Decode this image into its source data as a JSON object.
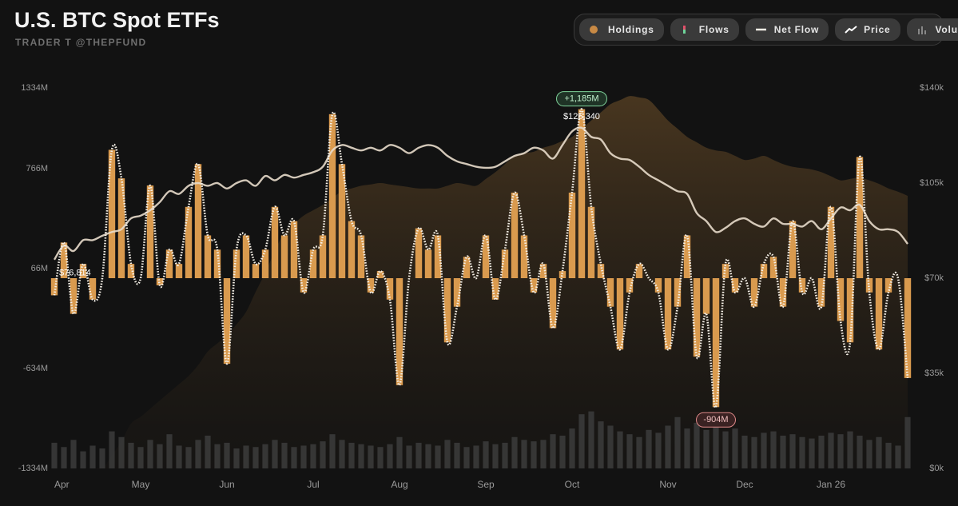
{
  "chart_data": {
    "type": "combo",
    "title": "U.S. BTC Spot ETFs",
    "subtitle": "TRADER T @THEPFUND",
    "categories": [
      "Apr",
      null,
      null,
      null,
      null,
      null,
      null,
      null,
      null,
      "May",
      null,
      null,
      null,
      null,
      null,
      null,
      null,
      null,
      "Jun",
      null,
      null,
      null,
      null,
      null,
      null,
      null,
      null,
      "Jul",
      null,
      null,
      null,
      null,
      null,
      null,
      null,
      null,
      "Aug",
      null,
      null,
      null,
      null,
      null,
      null,
      null,
      null,
      "Sep",
      null,
      null,
      null,
      null,
      null,
      null,
      null,
      null,
      "Oct",
      null,
      null,
      null,
      null,
      null,
      null,
      null,
      null,
      null,
      "Nov",
      null,
      null,
      null,
      null,
      null,
      null,
      null,
      "Dec",
      null,
      null,
      null,
      null,
      null,
      null,
      null,
      null,
      "Jan 26",
      null,
      null,
      null,
      null,
      null,
      null,
      null,
      null
    ],
    "ylim": [
      -1334,
      1334
    ],
    "yticks": [
      {
        "value": 1334,
        "label": "1334M"
      },
      {
        "value": 766,
        "label": "766M"
      },
      {
        "value": 66,
        "label": "66M"
      },
      {
        "value": -634,
        "label": "-634M"
      },
      {
        "value": -1334,
        "label": "-1334M"
      }
    ],
    "y2lim": [
      0,
      140000
    ],
    "y2ticks": [
      {
        "value": 140000,
        "label": "$140k"
      },
      {
        "value": 105000,
        "label": "$105k"
      },
      {
        "value": 70000,
        "label": "$70k"
      },
      {
        "value": 35000,
        "label": "$35k"
      },
      {
        "value": 0,
        "label": "$0k"
      }
    ],
    "grid": false,
    "series": [
      {
        "name": "Holdings",
        "type": "area",
        "axis": "y2",
        "color": "#c98a45",
        "values": [
          0,
          0,
          0,
          0,
          0,
          0,
          4700,
          10000,
          16500,
          19000,
          22000,
          25000,
          28000,
          31000,
          34000,
          38000,
          43000,
          46000,
          49000,
          53000,
          57600,
          65000,
          72000,
          80000,
          87000,
          90000,
          93000,
          95000,
          97000,
          99500,
          102000,
          103000,
          104000,
          104500,
          105000,
          104500,
          104000,
          103500,
          103000,
          103000,
          103000,
          104000,
          105000,
          104500,
          104000,
          106500,
          109000,
          112000,
          115000,
          116000,
          116500,
          118000,
          119000,
          120500,
          122000,
          125000,
          128000,
          131000,
          134000,
          135500,
          137000,
          136500,
          135600,
          132000,
          128000,
          125000,
          122000,
          120000,
          118000,
          117000,
          116500,
          115000,
          113500,
          114000,
          115000,
          113500,
          112000,
          111000,
          110500,
          110000,
          109000,
          107500,
          106000,
          106500,
          107000,
          106000,
          104700,
          103000,
          101800,
          100300
        ]
      },
      {
        "name": "Flows",
        "type": "bar",
        "color": "#d99a4e",
        "values": [
          -120,
          250,
          -250,
          100,
          -150,
          0,
          900,
          700,
          100,
          0,
          650,
          -50,
          200,
          100,
          500,
          800,
          300,
          200,
          -600,
          200,
          300,
          100,
          200,
          500,
          300,
          400,
          -100,
          200,
          300,
          1150,
          800,
          400,
          300,
          -100,
          50,
          -150,
          -750,
          0,
          350,
          200,
          300,
          -450,
          -200,
          150,
          0,
          300,
          -150,
          200,
          600,
          300,
          -100,
          100,
          -350,
          50,
          600,
          1185,
          500,
          100,
          -200,
          -500,
          -100,
          100,
          0,
          -100,
          -500,
          -200,
          300,
          -550,
          -250,
          -904,
          100,
          -100,
          0,
          -200,
          100,
          150,
          -200,
          400,
          -100,
          0,
          -200,
          500,
          -300,
          -450,
          850,
          -100,
          -500,
          -100,
          0,
          -700
        ],
        "value_labels": [
          null,
          null,
          null,
          null,
          null,
          null,
          null,
          null,
          null,
          null,
          null,
          null,
          null,
          null,
          null,
          null,
          null,
          null,
          null,
          null,
          null,
          null,
          null,
          null,
          null,
          null,
          null,
          null,
          null,
          null,
          null,
          null,
          null,
          null,
          null,
          null,
          null,
          null,
          null,
          null,
          null,
          null,
          null,
          null,
          null,
          null,
          null,
          null,
          null,
          null,
          null,
          null,
          null,
          null,
          null,
          "+1,185M",
          null,
          null,
          null,
          null,
          null,
          null,
          null,
          null,
          null,
          null,
          null,
          null,
          null,
          "-904M",
          null,
          null,
          null,
          null,
          null,
          null,
          null,
          null,
          null,
          null,
          null,
          null,
          null,
          null,
          null,
          null,
          null,
          null,
          null,
          null
        ]
      },
      {
        "name": "Net Flow",
        "type": "smooth",
        "color": "#f4efe6",
        "values": [
          -120,
          250,
          -250,
          100,
          -150,
          0,
          900,
          700,
          100,
          0,
          650,
          -50,
          200,
          100,
          500,
          800,
          300,
          200,
          -600,
          200,
          300,
          100,
          200,
          500,
          300,
          400,
          -100,
          200,
          300,
          1150,
          800,
          400,
          300,
          -100,
          50,
          -150,
          -750,
          0,
          350,
          200,
          300,
          -450,
          -200,
          150,
          0,
          300,
          -150,
          200,
          600,
          300,
          -100,
          100,
          -350,
          50,
          600,
          1185,
          500,
          100,
          -200,
          -500,
          -100,
          100,
          0,
          -100,
          -500,
          -200,
          300,
          -550,
          -250,
          -904,
          100,
          -100,
          0,
          -200,
          100,
          150,
          -200,
          400,
          -100,
          0,
          -200,
          500,
          -300,
          -450,
          850,
          -100,
          -500,
          -100,
          0,
          -700
        ]
      },
      {
        "name": "Price",
        "type": "line",
        "axis": "y2",
        "color": "#e8dccb",
        "values": [
          76814,
          82000,
          80000,
          84000,
          84000,
          85600,
          87000,
          88000,
          92000,
          93000,
          95000,
          98000,
          102000,
          101000,
          104000,
          105000,
          104000,
          105000,
          103000,
          105000,
          106000,
          104000,
          107600,
          106000,
          108000,
          107000,
          108000,
          109000,
          111000,
          117000,
          119000,
          118000,
          117000,
          118000,
          117000,
          119000,
          118000,
          116000,
          118000,
          119000,
          118000,
          115000,
          113000,
          112000,
          111000,
          110600,
          111000,
          113000,
          115000,
          116000,
          118000,
          117000,
          114000,
          119000,
          124000,
          125340,
          122000,
          121000,
          116000,
          114000,
          113500,
          111000,
          108000,
          106000,
          104000,
          102000,
          101000,
          94000,
          91000,
          87000,
          88500,
          91000,
          92000,
          90000,
          89000,
          92000,
          90000,
          90000,
          89000,
          91000,
          88000,
          92000,
          96000,
          95000,
          97000,
          91000,
          88000,
          88000,
          87000,
          82600
        ],
        "value_labels": [
          "$76,814",
          null,
          null,
          null,
          null,
          null,
          null,
          null,
          null,
          null,
          null,
          null,
          null,
          null,
          null,
          null,
          null,
          null,
          null,
          null,
          null,
          null,
          null,
          null,
          null,
          null,
          null,
          null,
          null,
          null,
          null,
          null,
          null,
          null,
          null,
          null,
          null,
          null,
          null,
          null,
          null,
          null,
          null,
          null,
          null,
          null,
          null,
          null,
          null,
          null,
          null,
          null,
          null,
          null,
          null,
          "$125,340",
          null,
          null,
          null,
          null,
          null,
          null,
          null,
          null,
          null,
          null,
          null,
          null,
          null,
          null,
          null,
          null,
          null,
          null,
          null,
          null,
          null,
          null,
          null,
          null,
          null,
          null,
          null,
          null,
          null,
          null,
          null,
          null,
          null,
          null
        ]
      },
      {
        "name": "Volume",
        "type": "volume",
        "color": "#3a3a3a",
        "values": [
          180,
          150,
          200,
          120,
          160,
          140,
          260,
          220,
          180,
          150,
          200,
          170,
          240,
          160,
          150,
          200,
          230,
          170,
          180,
          140,
          160,
          150,
          170,
          200,
          180,
          150,
          160,
          170,
          190,
          240,
          200,
          180,
          170,
          160,
          150,
          170,
          220,
          160,
          180,
          170,
          160,
          200,
          180,
          150,
          160,
          190,
          170,
          180,
          220,
          200,
          190,
          200,
          240,
          230,
          280,
          380,
          400,
          330,
          300,
          260,
          240,
          220,
          270,
          250,
          300,
          360,
          280,
          320,
          270,
          340,
          260,
          280,
          230,
          220,
          250,
          260,
          230,
          240,
          220,
          210,
          230,
          250,
          240,
          260,
          230,
          200,
          220,
          180,
          160,
          360
        ]
      }
    ]
  }
}
